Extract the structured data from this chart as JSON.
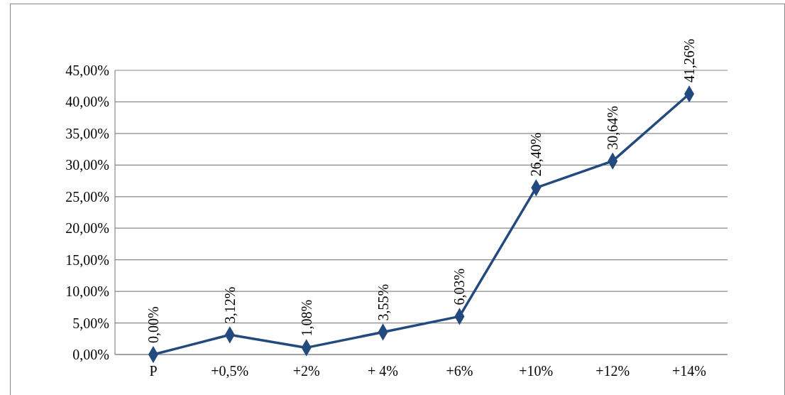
{
  "chart_data": {
    "type": "line",
    "categories": [
      "P",
      "+0,5%",
      "+2%",
      "+ 4%",
      "+6%",
      "+10%",
      "+12%",
      "+14%"
    ],
    "series": [
      {
        "color": "#234a7e",
        "values": [
          0,
          3.12,
          1.08,
          3.55,
          6.03,
          26.4,
          30.64,
          41.26
        ],
        "value_labels": [
          "0,00%",
          "3,12%",
          "1,08%",
          "3,55%",
          "6,03%",
          "26,40%",
          "30,64%",
          "41,26%"
        ]
      }
    ],
    "ylim": [
      0,
      45
    ],
    "yticks": [
      {
        "value": 0,
        "label": "0,00%"
      },
      {
        "value": 5,
        "label": "5,00%"
      },
      {
        "value": 10,
        "label": "10,00%"
      },
      {
        "value": 15,
        "label": "15,00%"
      },
      {
        "value": 20,
        "label": "20,00%"
      },
      {
        "value": 25,
        "label": "25,00%"
      },
      {
        "value": 30,
        "label": "30,00%"
      },
      {
        "value": 35,
        "label": "35,00%"
      },
      {
        "value": 40,
        "label": "40,00%"
      },
      {
        "value": 45,
        "label": "45,00%"
      }
    ],
    "grid": "y",
    "marker": "diamond",
    "line_style": "solid"
  }
}
